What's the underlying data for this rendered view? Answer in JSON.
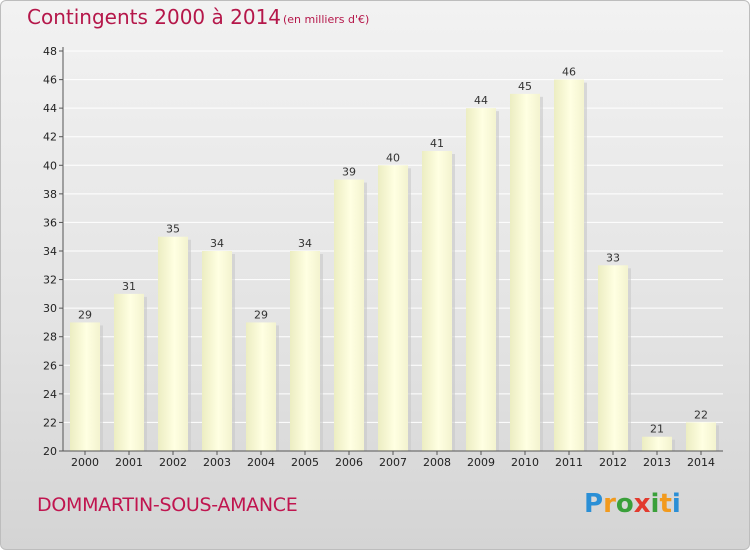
{
  "header": {
    "title": "Contingents 2000 à 2014",
    "unit": "(en milliers d'€)"
  },
  "footer": {
    "commune": "DOMMARTIN-SOUS-AMANCE",
    "logo_text": "Proxiti"
  },
  "colors": {
    "title": "#b5174a",
    "bar_light": "#ffffe0",
    "bar_dark": "#e6e6b8",
    "grid": "#ffffff",
    "axis": "#555555"
  },
  "chart_data": {
    "type": "bar",
    "title": "Contingents 2000 à 2014",
    "subtitle": "(en milliers d'€)",
    "xlabel": "",
    "ylabel": "",
    "categories": [
      "2000",
      "2001",
      "2002",
      "2003",
      "2004",
      "2005",
      "2006",
      "2007",
      "2008",
      "2009",
      "2010",
      "2011",
      "2012",
      "2013",
      "2014"
    ],
    "values": [
      29,
      31,
      35,
      34,
      29,
      34,
      39,
      40,
      41,
      44,
      45,
      46,
      33,
      21,
      22
    ],
    "ylim": [
      20,
      48
    ],
    "yticks": [
      20,
      22,
      24,
      26,
      28,
      30,
      32,
      34,
      36,
      38,
      40,
      42,
      44,
      46,
      48
    ],
    "grid": true,
    "data_labels": true
  }
}
